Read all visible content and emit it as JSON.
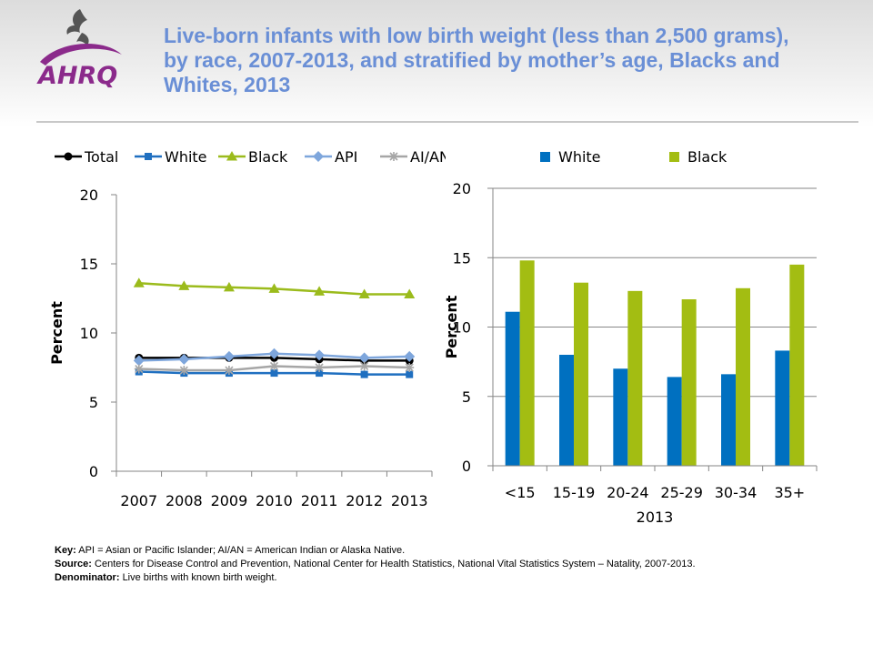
{
  "title": "Live-born infants with low birth weight (less than 2,500 grams), by race, 2007-2013, and stratified by mother’s age, Blacks and Whites, 2013",
  "logo": {
    "name": "AHRQ",
    "text": "AHRQ",
    "color": "#8b2a8b"
  },
  "colors": {
    "title": "#6a8fd6",
    "rule": "#c8c8c8"
  },
  "chart_data": [
    {
      "type": "line",
      "x": [
        "2007",
        "2008",
        "2009",
        "2010",
        "2011",
        "2012",
        "2013"
      ],
      "ylabel": "Percent",
      "ylim": [
        0,
        20
      ],
      "yticks": [
        0,
        5,
        10,
        15,
        20
      ],
      "legend_position": "top",
      "grid": false,
      "series": [
        {
          "name": "Total",
          "color": "#000000",
          "marker": "circle",
          "values": [
            8.2,
            8.2,
            8.2,
            8.2,
            8.1,
            8.0,
            8.0
          ]
        },
        {
          "name": "White",
          "color": "#1f6fc0",
          "marker": "square",
          "values": [
            7.2,
            7.1,
            7.1,
            7.1,
            7.1,
            7.0,
            7.0
          ]
        },
        {
          "name": "Black",
          "color": "#9bbb1c",
          "marker": "triangle",
          "values": [
            13.6,
            13.4,
            13.3,
            13.2,
            13.0,
            12.8,
            12.8
          ]
        },
        {
          "name": "API",
          "color": "#7ea6dc",
          "marker": "diamond",
          "values": [
            8.0,
            8.1,
            8.3,
            8.5,
            8.4,
            8.2,
            8.3
          ]
        },
        {
          "name": "AI/AN",
          "color": "#a6a6a6",
          "marker": "star",
          "values": [
            7.4,
            7.3,
            7.3,
            7.6,
            7.5,
            7.6,
            7.5
          ]
        }
      ]
    },
    {
      "type": "bar",
      "categories": [
        "<15",
        "15-19",
        "20-24",
        "25-29",
        "30-34",
        "35+"
      ],
      "xlabel": "2013",
      "ylabel": "Percent",
      "ylim": [
        0,
        20
      ],
      "yticks": [
        0,
        5,
        10,
        15,
        20
      ],
      "legend_position": "top",
      "grid": true,
      "series": [
        {
          "name": "White",
          "color": "#0070c0",
          "values": [
            11.1,
            8.0,
            7.0,
            6.4,
            6.6,
            8.3
          ]
        },
        {
          "name": "Black",
          "color": "#a3bd12",
          "values": [
            14.8,
            13.2,
            12.6,
            12.0,
            12.8,
            14.5
          ]
        }
      ]
    }
  ],
  "notes": {
    "key_label": "Key:",
    "key_text": "API = Asian or Pacific Islander; AI/AN = American Indian or Alaska Native.",
    "source_label": "Source:",
    "source_text": "Centers for Disease Control and Prevention, National Center for Health Statistics, National Vital Statistics System – Natality, 2007-2013.",
    "denominator_label": "Denominator:",
    "denominator_text": "Live births with known birth weight."
  }
}
